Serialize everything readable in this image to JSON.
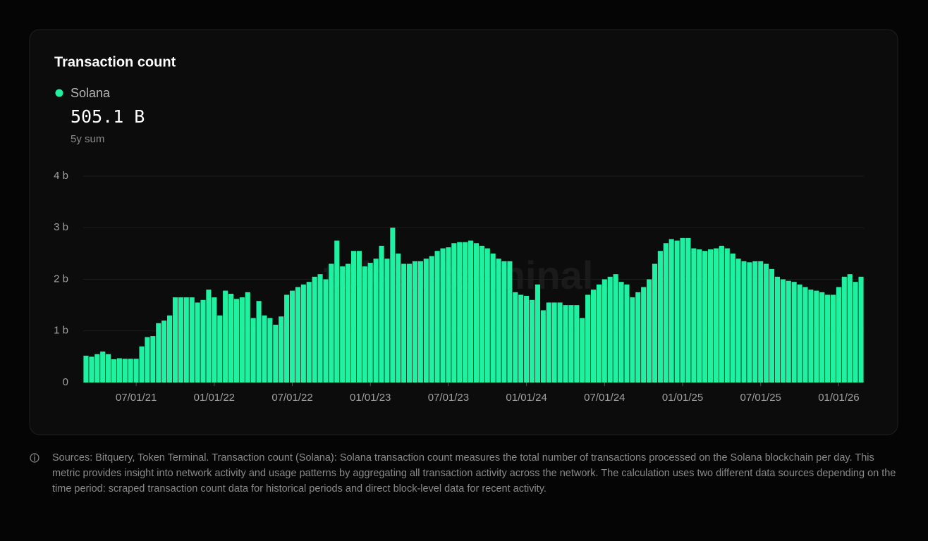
{
  "chart_data": {
    "type": "bar",
    "title": "Transaction count",
    "legend": {
      "name": "Solana",
      "total": "505.1 B",
      "total_label": "5y sum"
    },
    "watermark": "token terminal",
    "note": "Sources: Bitquery, Token Terminal. Transaction count (Solana): Solana transaction count measures the total number of transactions processed on the Solana blockchain per day. This metric provides insight into network activity and usage patterns by aggregating all transaction activity across the network. The calculation uses two different data sources depending on the time period: scraped transaction count data for historical periods and direct block-level data for recent activity.",
    "color": "#1ef2a2",
    "grid": true,
    "ylim": [
      0,
      4
    ],
    "yticks": [
      0,
      {
        "value": 1,
        "label": "1 b"
      },
      {
        "value": 2,
        "label": "2 b"
      },
      {
        "value": 3,
        "label": "3 b"
      },
      {
        "value": 4,
        "label": "4 b"
      }
    ],
    "categories": [
      null,
      null,
      null,
      null,
      null,
      null,
      null,
      null,
      null,
      "07/01/21",
      null,
      null,
      null,
      null,
      null,
      null,
      null,
      null,
      null,
      null,
      null,
      null,
      null,
      "01/01/22",
      null,
      null,
      null,
      null,
      null,
      null,
      null,
      null,
      null,
      null,
      null,
      null,
      null,
      "07/01/22",
      null,
      null,
      null,
      null,
      null,
      null,
      null,
      null,
      null,
      null,
      null,
      null,
      null,
      "01/01/23",
      null,
      null,
      null,
      null,
      null,
      null,
      null,
      null,
      null,
      null,
      null,
      null,
      null,
      "07/01/23",
      null,
      null,
      null,
      null,
      null,
      null,
      null,
      null,
      null,
      null,
      null,
      null,
      null,
      "01/01/24",
      null,
      null,
      null,
      null,
      null,
      null,
      null,
      null,
      null,
      null,
      null,
      null,
      null,
      "07/01/24",
      null,
      null,
      null,
      null,
      null,
      null,
      null,
      null,
      null,
      null,
      null,
      null,
      null,
      "01/01/25",
      null,
      null,
      null,
      null,
      null,
      null,
      null,
      null,
      null,
      null,
      null,
      null,
      null,
      "07/01/25",
      null,
      null,
      null,
      null,
      null,
      null,
      null,
      null,
      null,
      null,
      null,
      null,
      null,
      "01/01/26",
      null,
      null,
      null,
      null
    ],
    "values": [
      0.52,
      0.5,
      0.55,
      0.6,
      0.55,
      0.45,
      0.47,
      0.46,
      0.46,
      0.46,
      0.7,
      0.88,
      0.9,
      1.15,
      1.2,
      1.3,
      1.65,
      1.65,
      1.65,
      1.65,
      1.55,
      1.6,
      1.8,
      1.65,
      1.3,
      1.78,
      1.72,
      1.62,
      1.65,
      1.75,
      1.25,
      1.58,
      1.3,
      1.25,
      1.12,
      1.28,
      1.7,
      1.78,
      1.85,
      1.9,
      1.95,
      2.05,
      2.1,
      2.0,
      2.3,
      2.75,
      2.25,
      2.3,
      2.55,
      2.55,
      2.25,
      2.32,
      2.4,
      2.65,
      2.4,
      3.0,
      2.5,
      2.3,
      2.3,
      2.35,
      2.35,
      2.4,
      2.45,
      2.55,
      2.6,
      2.62,
      2.7,
      2.72,
      2.72,
      2.75,
      2.7,
      2.65,
      2.6,
      2.5,
      2.4,
      2.35,
      2.35,
      1.75,
      1.7,
      1.68,
      1.6,
      1.9,
      1.4,
      1.55,
      1.55,
      1.55,
      1.5,
      1.5,
      1.5,
      1.25,
      1.7,
      1.8,
      1.9,
      2.0,
      2.05,
      2.1,
      1.95,
      1.9,
      1.65,
      1.75,
      1.85,
      2.0,
      2.3,
      2.55,
      2.7,
      2.78,
      2.75,
      2.8,
      2.8,
      2.6,
      2.58,
      2.55,
      2.58,
      2.6,
      2.65,
      2.6,
      2.5,
      2.4,
      2.35,
      2.33,
      2.35,
      2.35,
      2.3,
      2.2,
      2.05,
      2.0,
      1.97,
      1.95,
      1.9,
      1.85,
      1.8,
      1.78,
      1.75,
      1.7,
      1.7,
      1.85,
      2.05,
      2.1,
      1.95,
      2.05
    ]
  }
}
